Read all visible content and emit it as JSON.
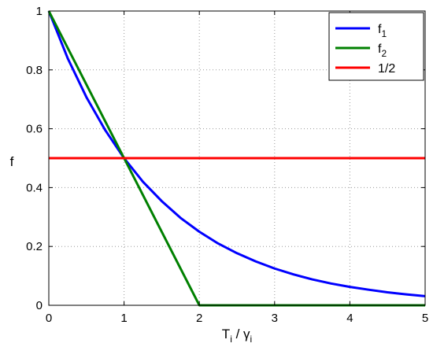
{
  "chart_data": {
    "type": "line",
    "xlabel": {
      "main": "T",
      "main_sub": "i",
      "sep": " / ",
      "var": "γ",
      "var_sub": "i"
    },
    "ylabel": "f",
    "xlim": [
      0,
      5
    ],
    "ylim": [
      0,
      1
    ],
    "xticks": [
      "0",
      "1",
      "2",
      "3",
      "4",
      "5"
    ],
    "yticks": [
      "0",
      "0.2",
      "0.4",
      "0.6",
      "0.8",
      "1"
    ],
    "grid": true,
    "legend_position": "top-right",
    "series": [
      {
        "name": "f",
        "name_sub": "1",
        "color": "#0000ff",
        "x": [
          0,
          0.25,
          0.5,
          0.75,
          1,
          1.25,
          1.5,
          1.75,
          2,
          2.25,
          2.5,
          2.75,
          3,
          3.25,
          3.5,
          3.75,
          4,
          4.25,
          4.5,
          4.75,
          5
        ],
        "y": [
          1,
          0.84,
          0.707,
          0.595,
          0.5,
          0.42,
          0.354,
          0.297,
          0.25,
          0.21,
          0.177,
          0.149,
          0.125,
          0.105,
          0.088,
          0.074,
          0.0625,
          0.053,
          0.044,
          0.037,
          0.031
        ]
      },
      {
        "name": "f",
        "name_sub": "2",
        "color": "#008000",
        "x": [
          0,
          1,
          2,
          5
        ],
        "y": [
          1,
          0.5,
          0,
          0
        ]
      },
      {
        "name": "1/2",
        "name_sub": "",
        "color": "#ff0000",
        "x": [
          0,
          5
        ],
        "y": [
          0.5,
          0.5
        ]
      }
    ]
  }
}
